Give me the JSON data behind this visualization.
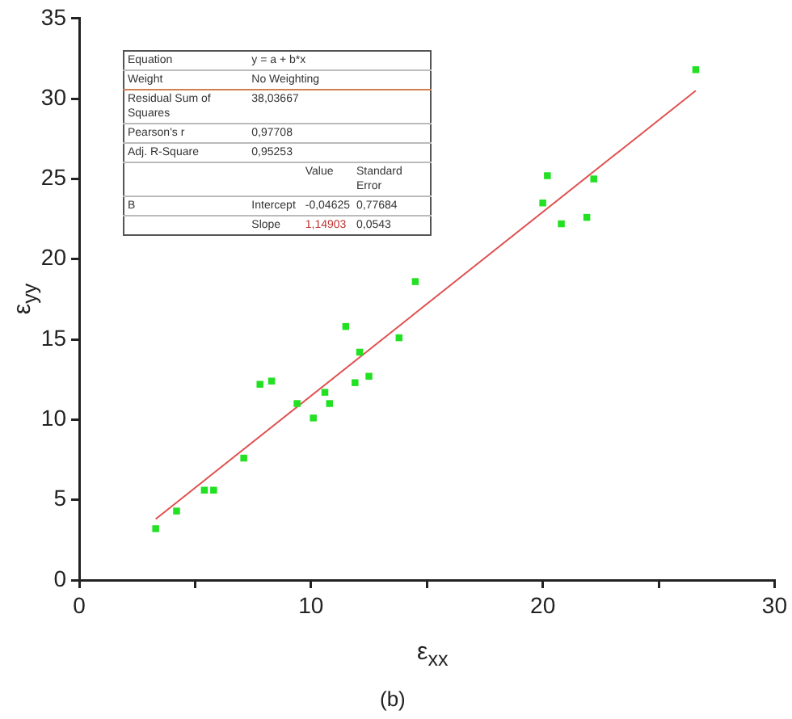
{
  "chart_data": {
    "type": "scatter",
    "xlabel": "ε$_{xx}$",
    "ylabel": "ε$_{yy}$",
    "xlim": [
      0,
      30
    ],
    "xticks": [
      0,
      {
        "value": 5,
        "label": null
      },
      10,
      {
        "value": 15,
        "label": null
      },
      20,
      {
        "value": 25,
        "label": null
      },
      30
    ],
    "ylim": [
      0,
      35
    ],
    "yticks": [
      0,
      5,
      10,
      15,
      20,
      25,
      30,
      35
    ],
    "grid": false,
    "legend": false,
    "marker": "square",
    "series": [
      {
        "color": "#22e022",
        "x": [
          3.3,
          4.2,
          5.4,
          5.8,
          7.1,
          7.8,
          8.3,
          9.4,
          10.1,
          10.6,
          10.8,
          11.5,
          11.9,
          12.1,
          12.5,
          13.8,
          14.5,
          20.0,
          20.2,
          20.8,
          21.9,
          22.2,
          26.6
        ],
        "values": [
          3.2,
          4.3,
          5.6,
          5.6,
          7.6,
          12.2,
          12.4,
          11.0,
          10.1,
          11.7,
          11.0,
          15.8,
          12.3,
          14.2,
          12.7,
          15.1,
          18.6,
          23.5,
          25.2,
          22.2,
          22.6,
          25.0,
          31.8
        ]
      },
      {
        "type": "line",
        "color": "#e05050",
        "marker": "none",
        "x": [
          3.3,
          26.6
        ],
        "values": [
          3.8,
          30.5
        ]
      }
    ],
    "annotations": [
      "Equation",
      "y = a + b*x",
      "Weight",
      "No Weighting",
      "Residual Sum of Squares",
      "38,03667",
      "Pearson's r",
      "0,97708",
      "Adj. R-Square",
      "0,95253",
      "Value",
      "Standard Error",
      "B",
      "Intercept",
      "-0,04625",
      "0,77684",
      "Slope",
      "1,14903",
      "0,0543",
      "(b)"
    ]
  }
}
